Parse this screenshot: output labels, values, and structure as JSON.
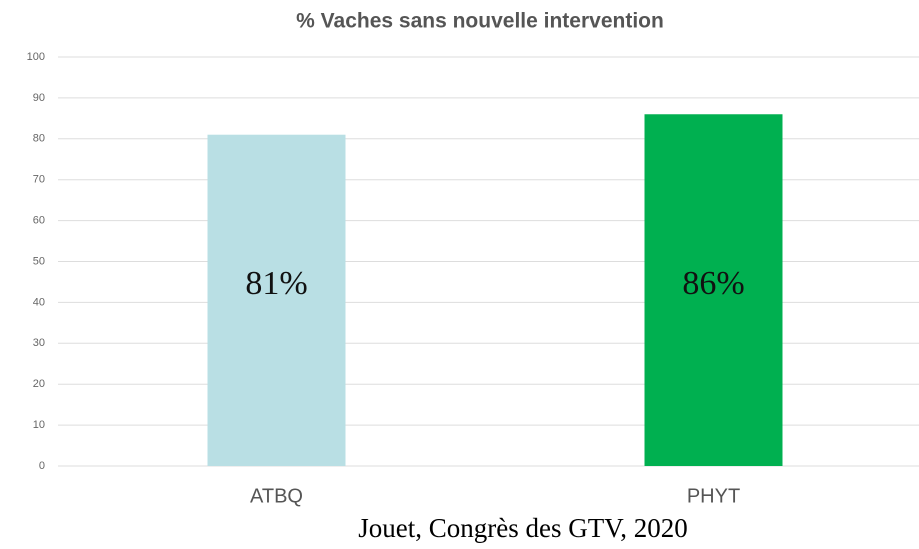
{
  "chart_data": {
    "type": "bar",
    "title": "% Vaches sans nouvelle intervention",
    "categories": [
      "ATBQ",
      "PHYT"
    ],
    "values": [
      81,
      86
    ],
    "value_labels": [
      "81%",
      "86%"
    ],
    "colors": [
      "#b9dfe4",
      "#00b050"
    ],
    "ylim": [
      0,
      100
    ],
    "yticks": [
      0,
      10,
      20,
      30,
      40,
      50,
      60,
      70,
      80,
      90,
      100
    ],
    "grid": true,
    "source": "Jouet, Congrès des GTV, 2020"
  }
}
